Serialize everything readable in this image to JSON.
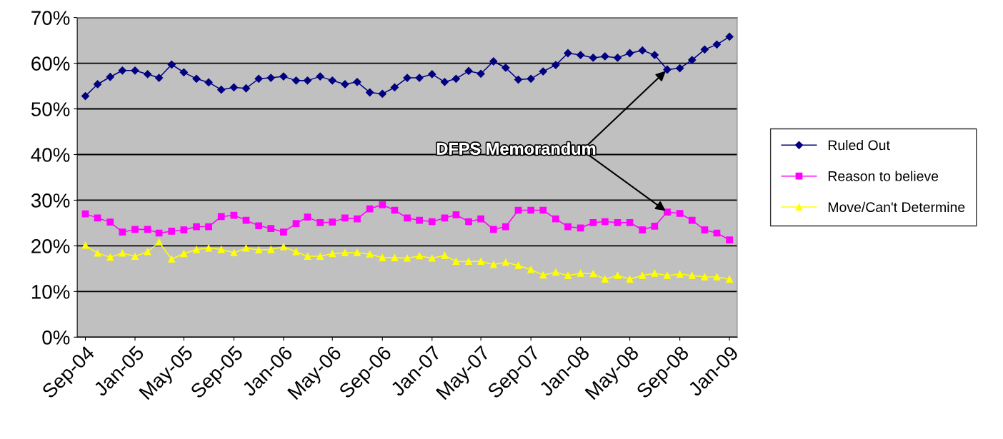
{
  "chart_data": {
    "type": "line",
    "x": [
      "2004-09",
      "2004-10",
      "2004-11",
      "2004-12",
      "2005-01",
      "2005-02",
      "2005-03",
      "2005-04",
      "2005-05",
      "2005-06",
      "2005-07",
      "2005-08",
      "2005-09",
      "2005-10",
      "2005-11",
      "2005-12",
      "2006-01",
      "2006-02",
      "2006-03",
      "2006-04",
      "2006-05",
      "2006-06",
      "2006-07",
      "2006-08",
      "2006-09",
      "2006-10",
      "2006-11",
      "2006-12",
      "2007-01",
      "2007-02",
      "2007-03",
      "2007-04",
      "2007-05",
      "2007-06",
      "2007-07",
      "2007-08",
      "2007-09",
      "2007-10",
      "2007-11",
      "2007-12",
      "2008-01",
      "2008-02",
      "2008-03",
      "2008-04",
      "2008-05",
      "2008-06",
      "2008-07",
      "2008-08",
      "2008-09",
      "2008-10",
      "2008-11",
      "2008-12",
      "2009-01"
    ],
    "series": [
      {
        "name": "Ruled Out",
        "color": "#000080",
        "marker": "diamond",
        "values": [
          52.8,
          55.4,
          57.0,
          58.4,
          58.4,
          57.6,
          56.8,
          59.7,
          58.0,
          56.6,
          55.8,
          54.2,
          54.7,
          54.5,
          56.6,
          56.8,
          57.1,
          56.2,
          56.2,
          57.1,
          56.2,
          55.4,
          55.9,
          53.6,
          53.3,
          54.7,
          56.8,
          56.8,
          57.6,
          55.9,
          56.6,
          58.3,
          57.7,
          60.4,
          59.0,
          56.4,
          56.6,
          58.2,
          59.6,
          62.2,
          61.8,
          61.2,
          61.5,
          61.2,
          62.2,
          62.8,
          61.8,
          58.6,
          58.9,
          60.7,
          63.0,
          64.1,
          65.8
        ]
      },
      {
        "name": "Reason to believe",
        "color": "#ff00ff",
        "marker": "square",
        "values": [
          27.0,
          26.1,
          25.2,
          23.0,
          23.6,
          23.6,
          22.8,
          23.2,
          23.5,
          24.2,
          24.2,
          26.4,
          26.7,
          25.6,
          24.4,
          23.8,
          23.0,
          24.9,
          26.3,
          25.1,
          25.2,
          26.1,
          25.9,
          28.1,
          29.0,
          27.8,
          26.1,
          25.6,
          25.3,
          26.1,
          26.8,
          25.3,
          25.9,
          23.6,
          24.2,
          27.8,
          27.8,
          27.8,
          25.9,
          24.2,
          23.9,
          25.1,
          25.3,
          25.1,
          25.1,
          23.5,
          24.3,
          27.4,
          27.1,
          25.6,
          23.5,
          22.8,
          21.3
        ]
      },
      {
        "name": "Move/Can't Determine",
        "color": "#ffff00",
        "marker": "triangle",
        "values": [
          20.1,
          18.4,
          17.5,
          18.4,
          17.7,
          18.7,
          20.8,
          17.1,
          18.3,
          19.2,
          19.5,
          19.2,
          18.5,
          19.5,
          19.1,
          19.2,
          19.8,
          18.7,
          17.7,
          17.7,
          18.3,
          18.5,
          18.5,
          18.2,
          17.4,
          17.4,
          17.3,
          17.8,
          17.3,
          17.9,
          16.6,
          16.6,
          16.6,
          15.9,
          16.4,
          15.7,
          14.8,
          13.6,
          14.2,
          13.5,
          14.0,
          13.9,
          12.7,
          13.5,
          12.7,
          13.5,
          14.0,
          13.5,
          13.8,
          13.5,
          13.2,
          13.2,
          12.7
        ]
      }
    ],
    "xlim": [
      "2004-08-12",
      "2009-01-20"
    ],
    "xticks": [
      {
        "value": "2004-09",
        "label": "Sep-04"
      },
      {
        "value": "2005-01",
        "label": "Jan-05"
      },
      {
        "value": "2005-05",
        "label": "May-05"
      },
      {
        "value": "2005-09",
        "label": "Sep-05"
      },
      {
        "value": "2006-01",
        "label": "Jan-06"
      },
      {
        "value": "2006-05",
        "label": "May-06"
      },
      {
        "value": "2006-09",
        "label": "Sep-06"
      },
      {
        "value": "2007-01",
        "label": "Jan-07"
      },
      {
        "value": "2007-05",
        "label": "May-07"
      },
      {
        "value": "2007-09",
        "label": "Sep-07"
      },
      {
        "value": "2008-01",
        "label": "Jan-08"
      },
      {
        "value": "2008-05",
        "label": "May-08"
      },
      {
        "value": "2008-09",
        "label": "Sep-08"
      },
      {
        "value": "2009-01",
        "label": "Jan-09"
      }
    ],
    "ylim": [
      0,
      70
    ],
    "yticks": [
      {
        "value": 0,
        "label": "0%"
      },
      {
        "value": 10,
        "label": "10%"
      },
      {
        "value": 20,
        "label": "20%"
      },
      {
        "value": 30,
        "label": "30%"
      },
      {
        "value": 40,
        "label": "40%"
      },
      {
        "value": 50,
        "label": "50%"
      },
      {
        "value": 60,
        "label": "60%"
      },
      {
        "value": 70,
        "label": "70%"
      }
    ],
    "grid": "y",
    "legend": "right",
    "line_style": "solid",
    "annotations": [
      {
        "text": "DFPS Memorandum",
        "x": "2008-08",
        "y": 58.6
      }
    ]
  }
}
